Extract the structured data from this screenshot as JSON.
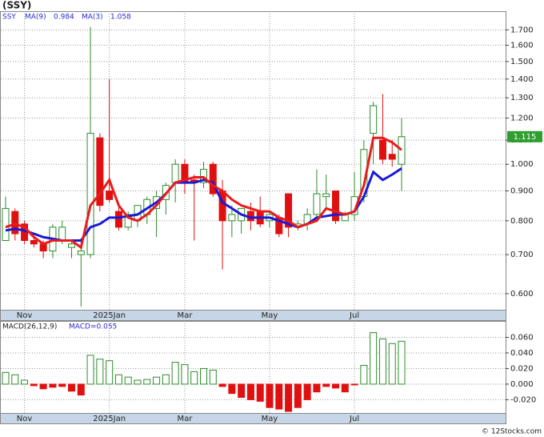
{
  "chart_data": [
    {
      "type": "candlestick",
      "title": "(SSY)",
      "symbol": "SSY",
      "log_scale": true,
      "grid": true,
      "categories": [
        null,
        null,
        "Nov",
        null,
        null,
        null,
        null,
        null,
        null,
        null,
        null,
        "2025Jan",
        null,
        null,
        null,
        null,
        null,
        null,
        null,
        "Mar",
        null,
        null,
        null,
        null,
        null,
        null,
        null,
        null,
        "May",
        null,
        null,
        null,
        null,
        null,
        null,
        null,
        null,
        "Jul",
        null,
        null,
        null,
        null,
        null
      ],
      "up_color": "#2e8b2e",
      "down_color": "#e01010",
      "open": [
        0.74,
        0.83,
        0.79,
        0.74,
        0.73,
        0.71,
        0.74,
        0.72,
        0.7,
        0.7,
        1.11,
        0.9,
        0.83,
        0.78,
        0.8,
        0.82,
        0.84,
        0.87,
        0.93,
        1.0,
        0.94,
        0.93,
        1.0,
        0.9,
        0.8,
        0.8,
        0.83,
        0.83,
        0.8,
        0.81,
        0.89,
        0.78,
        0.79,
        0.82,
        0.88,
        0.9,
        0.8,
        0.82,
        0.88,
        1.13,
        1.1,
        1.04,
        1.0
      ],
      "high": [
        0.88,
        0.84,
        0.8,
        0.75,
        0.74,
        0.79,
        0.8,
        0.74,
        0.74,
        1.72,
        1.13,
        1.4,
        0.86,
        0.83,
        0.85,
        0.88,
        0.9,
        0.93,
        1.02,
        1.02,
        0.96,
        1.01,
        1.01,
        0.94,
        0.85,
        0.84,
        0.86,
        0.88,
        0.83,
        0.82,
        0.89,
        0.8,
        0.84,
        0.98,
        0.96,
        0.9,
        0.83,
        0.97,
        1.1,
        1.28,
        1.32,
        1.1,
        1.2
      ],
      "low": [
        0.74,
        0.74,
        0.73,
        0.72,
        0.69,
        0.69,
        0.73,
        0.69,
        0.57,
        0.69,
        0.83,
        0.86,
        0.77,
        0.77,
        0.78,
        0.79,
        0.75,
        0.82,
        0.86,
        0.89,
        0.74,
        0.91,
        0.88,
        0.66,
        0.75,
        0.76,
        0.77,
        0.78,
        0.78,
        0.75,
        0.75,
        0.77,
        0.77,
        0.8,
        0.84,
        0.79,
        0.8,
        0.8,
        0.86,
        1.0,
        1.0,
        0.99,
        0.9
      ],
      "close": [
        0.84,
        0.76,
        0.74,
        0.73,
        0.71,
        0.78,
        0.78,
        0.73,
        0.71,
        1.13,
        0.85,
        0.87,
        0.78,
        0.82,
        0.85,
        0.87,
        0.88,
        0.92,
        1.0,
        0.93,
        0.93,
        0.98,
        0.89,
        0.8,
        0.82,
        0.84,
        0.8,
        0.79,
        0.82,
        0.76,
        0.78,
        0.79,
        0.82,
        0.89,
        0.89,
        0.8,
        0.82,
        0.88,
        1.06,
        1.26,
        1.02,
        1.02,
        1.115
      ],
      "series": [
        {
          "name": "MA(9)",
          "legend_value": 0.984,
          "color": "#1a1ad6",
          "values": [
            0.77,
            0.775,
            0.77,
            0.76,
            0.75,
            0.745,
            0.74,
            0.74,
            0.74,
            0.78,
            0.79,
            0.81,
            0.81,
            0.815,
            0.82,
            0.84,
            0.86,
            0.89,
            0.93,
            0.93,
            0.93,
            0.94,
            0.93,
            0.86,
            0.84,
            0.82,
            0.81,
            0.81,
            0.81,
            0.8,
            0.79,
            0.78,
            0.79,
            0.81,
            0.815,
            0.82,
            0.82,
            0.83,
            0.88,
            0.97,
            0.94,
            0.96,
            0.984
          ]
        },
        {
          "name": "MA(3)",
          "legend_value": 1.058,
          "color": "#e81c1c",
          "values": [
            0.78,
            0.79,
            0.78,
            0.75,
            0.73,
            0.74,
            0.74,
            0.74,
            0.72,
            0.85,
            0.89,
            0.94,
            0.85,
            0.81,
            0.8,
            0.82,
            0.85,
            0.89,
            0.93,
            0.94,
            0.95,
            0.95,
            0.92,
            0.9,
            0.87,
            0.85,
            0.84,
            0.83,
            0.83,
            0.81,
            0.8,
            0.78,
            0.79,
            0.8,
            0.84,
            0.83,
            0.82,
            0.83,
            0.92,
            1.11,
            1.11,
            1.09,
            1.058
          ]
        }
      ],
      "last_price": {
        "value": 1.115,
        "label": "1.115"
      },
      "ylim": [
        0.563,
        1.83
      ],
      "yticks": [
        {
          "value": 0.6,
          "label": "0.600"
        },
        {
          "value": 0.7,
          "label": "0.700"
        },
        {
          "value": 0.8,
          "label": "0.800"
        },
        {
          "value": 0.9,
          "label": "0.900"
        },
        {
          "value": 1.0,
          "label": "1.000"
        },
        {
          "value": 1.1,
          "label": "1.100"
        },
        {
          "value": 1.2,
          "label": "1.200"
        },
        {
          "value": 1.3,
          "label": "1.300"
        },
        {
          "value": 1.4,
          "label": "1.400"
        },
        {
          "value": 1.5,
          "label": "1.500"
        },
        {
          "value": 1.6,
          "label": "1.600"
        },
        {
          "value": 1.7,
          "label": "1.700"
        }
      ]
    },
    {
      "type": "bar",
      "title": "MACD(26,12,9)",
      "indicator": "MACD=0.055",
      "grid": true,
      "categories": [
        null,
        null,
        "Nov",
        null,
        null,
        null,
        null,
        null,
        null,
        null,
        null,
        "2025Jan",
        null,
        null,
        null,
        null,
        null,
        null,
        null,
        "Mar",
        null,
        null,
        null,
        null,
        null,
        null,
        null,
        null,
        "May",
        null,
        null,
        null,
        null,
        null,
        null,
        null,
        null,
        "Jul",
        null,
        null,
        null,
        null,
        null
      ],
      "up_color": "#2e8b2e",
      "down_color": "#e01010",
      "values": [
        0.015,
        0.012,
        0.005,
        -0.002,
        -0.006,
        -0.004,
        -0.003,
        -0.009,
        -0.014,
        0.037,
        0.032,
        0.03,
        0.012,
        0.009,
        0.005,
        0.006,
        0.009,
        0.012,
        0.028,
        0.025,
        0.016,
        0.02,
        0.018,
        -0.003,
        -0.012,
        -0.017,
        -0.02,
        -0.022,
        -0.03,
        -0.032,
        -0.035,
        -0.03,
        -0.02,
        -0.01,
        -0.003,
        -0.005,
        -0.01,
        -0.001,
        0.024,
        0.066,
        0.058,
        0.052,
        0.055
      ],
      "ylim": [
        -0.037,
        0.081
      ],
      "yticks": [
        {
          "value": -0.02,
          "label": "-0.020"
        },
        {
          "value": 0,
          "label": "0.000"
        },
        {
          "value": 0.02,
          "label": "0.020"
        },
        {
          "value": 0.04,
          "label": "0.040"
        },
        {
          "value": 0.06,
          "label": "0.060"
        }
      ]
    }
  ],
  "footer": "© 12Stocks.com"
}
